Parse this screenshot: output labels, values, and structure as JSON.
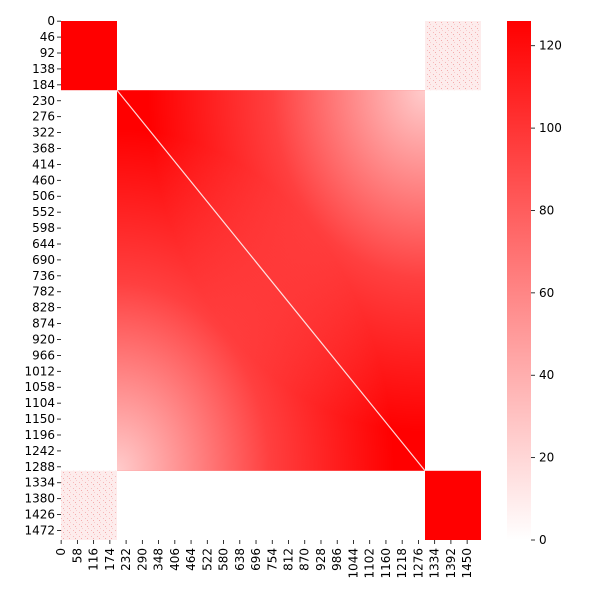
{
  "chart_data": {
    "type": "heatmap",
    "title": "",
    "xlabel": "",
    "ylabel": "",
    "n": 1500,
    "color_low": "#ffffff",
    "color_high": "#ff0000",
    "vmin": 0,
    "vmax": 126,
    "x_tick_labels": [
      "0",
      "58",
      "116",
      "174",
      "232",
      "290",
      "348",
      "406",
      "464",
      "522",
      "580",
      "638",
      "696",
      "754",
      "812",
      "870",
      "928",
      "986",
      "1044",
      "1102",
      "1160",
      "1218",
      "1276",
      "1334",
      "1392",
      "1450"
    ],
    "y_tick_labels": [
      "0",
      "46",
      "92",
      "138",
      "184",
      "230",
      "276",
      "322",
      "368",
      "414",
      "460",
      "506",
      "552",
      "598",
      "644",
      "690",
      "736",
      "782",
      "828",
      "874",
      "920",
      "966",
      "1012",
      "1058",
      "1104",
      "1150",
      "1196",
      "1242",
      "1288",
      "1334",
      "1380",
      "1426",
      "1472"
    ],
    "colorbar": {
      "ticks": [
        0,
        20,
        40,
        60,
        80,
        100,
        120
      ]
    },
    "blocks": [
      {
        "name": "block-a",
        "range": [
          0,
          200
        ],
        "value": 126
      },
      {
        "name": "block-b",
        "range": [
          200,
          1300
        ],
        "value": 126,
        "fade_corners": [
          "top-right",
          "bottom-left"
        ],
        "fade_min": 30
      },
      {
        "name": "block-c",
        "range": [
          1300,
          1500
        ],
        "value": 126
      }
    ],
    "off_diagonal": [
      {
        "rows": [
          0,
          200
        ],
        "cols": [
          1300,
          1500
        ],
        "value": 14
      },
      {
        "rows": [
          1300,
          1500
        ],
        "cols": [
          0,
          200
        ],
        "value": 14
      }
    ],
    "diagonal": "white line through block-b"
  }
}
